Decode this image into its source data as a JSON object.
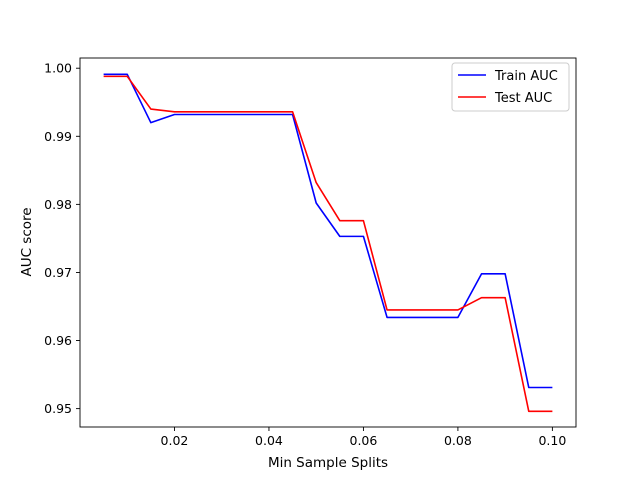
{
  "chart_data": {
    "type": "line",
    "title": "",
    "xlabel": "Min Sample Splits",
    "ylabel": "AUC score",
    "xlim": [
      0.0,
      0.105
    ],
    "ylim": [
      0.9473,
      1.0015
    ],
    "x_ticks": [
      0.02,
      0.04,
      0.06,
      0.08,
      0.1
    ],
    "x_tick_labels": [
      "0.02",
      "0.04",
      "0.06",
      "0.08",
      "0.10"
    ],
    "y_ticks": [
      0.95,
      0.96,
      0.97,
      0.98,
      0.99,
      1.0
    ],
    "y_tick_labels": [
      "0.95",
      "0.96",
      "0.97",
      "0.98",
      "0.99",
      "1.00"
    ],
    "grid": false,
    "legend_position": "top-right",
    "x": [
      0.005,
      0.01,
      0.015,
      0.02,
      0.025,
      0.03,
      0.035,
      0.04,
      0.045,
      0.05,
      0.055,
      0.06,
      0.065,
      0.07,
      0.075,
      0.08,
      0.085,
      0.09,
      0.095,
      0.1
    ],
    "series": [
      {
        "name": "Train AUC",
        "color": "#0000ff",
        "values": [
          0.9991,
          0.9991,
          0.992,
          0.9932,
          0.9932,
          0.9932,
          0.9932,
          0.9932,
          0.9932,
          0.9802,
          0.9753,
          0.9753,
          0.9634,
          0.9634,
          0.9634,
          0.9634,
          0.9698,
          0.9698,
          0.9531,
          0.9531
        ]
      },
      {
        "name": "Test AUC",
        "color": "#ff0000",
        "values": [
          0.9988,
          0.9988,
          0.994,
          0.9936,
          0.9936,
          0.9936,
          0.9936,
          0.9936,
          0.9936,
          0.9832,
          0.9776,
          0.9776,
          0.9645,
          0.9645,
          0.9645,
          0.9645,
          0.9663,
          0.9663,
          0.9496,
          0.9496
        ]
      }
    ]
  }
}
